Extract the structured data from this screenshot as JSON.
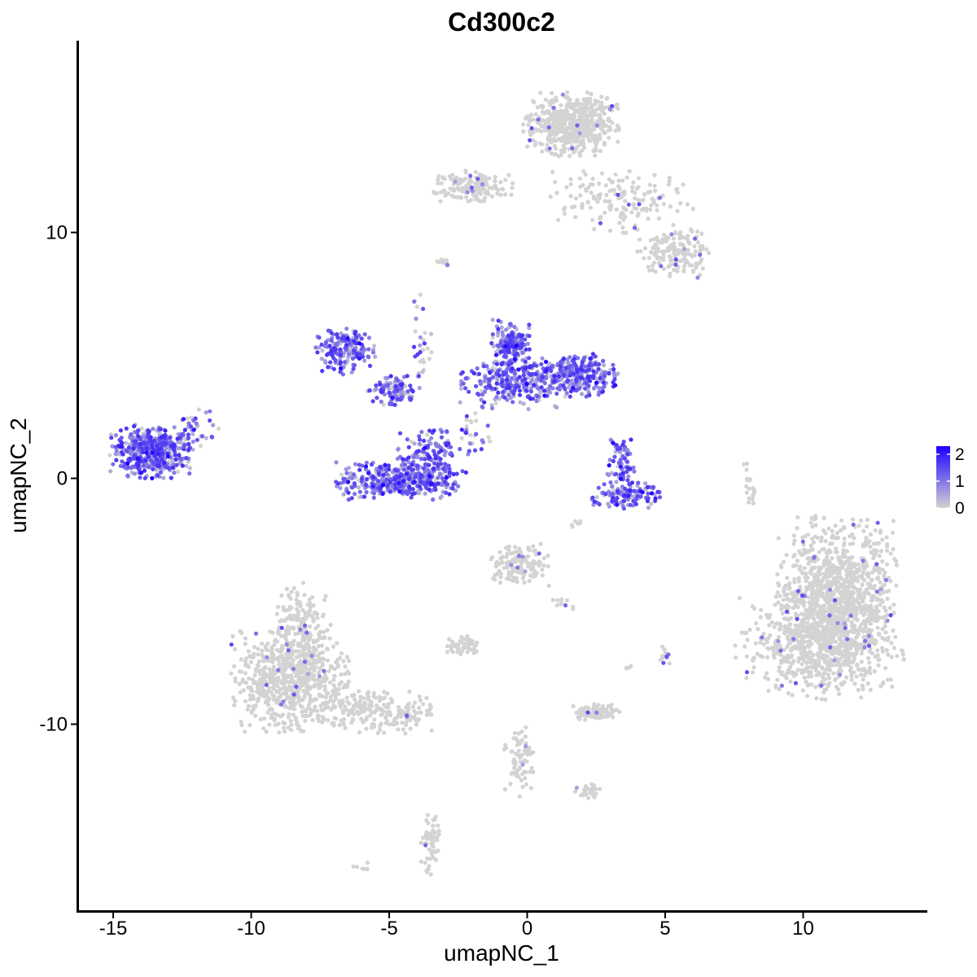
{
  "chart_data": {
    "type": "scatter",
    "title": "Cd300c2",
    "xlabel": "umapNC_1",
    "ylabel": "umapNC_2",
    "xlim": [
      -16.3,
      14.5
    ],
    "ylim": [
      -17.6,
      17.8
    ],
    "x_ticks": [
      -15,
      -10,
      -5,
      0,
      5,
      10
    ],
    "y_ticks": [
      -10,
      0,
      10
    ],
    "x_tick_labels": [
      "-15",
      "-10",
      "-5",
      "0",
      "5",
      "10"
    ],
    "y_tick_labels": [
      "-10",
      "0",
      "10"
    ],
    "grid": false,
    "legend": {
      "position": "right",
      "type": "colorbar",
      "range": [
        0,
        2.3
      ],
      "ticks": [
        0,
        1,
        2
      ],
      "tick_labels": [
        "0",
        "1",
        "2"
      ],
      "low_color": "#d3d3d3",
      "high_color": "#1c00ff"
    },
    "clusters": [
      {
        "x": 11.2,
        "y": -5.0,
        "sx": 1.0,
        "sy": 1.6,
        "n": 1100,
        "expr": 0.02
      },
      {
        "x": 10.6,
        "y": -6.8,
        "sx": 1.4,
        "sy": 1.0,
        "n": 500,
        "expr": 0.02
      },
      {
        "x": -8.6,
        "y": -8.2,
        "sx": 1.0,
        "sy": 1.0,
        "n": 650,
        "expr": 0.02
      },
      {
        "x": -8.2,
        "y": -6.0,
        "sx": 0.5,
        "sy": 0.8,
        "n": 180,
        "expr": 0.02
      },
      {
        "x": -5.6,
        "y": -9.5,
        "sx": 1.1,
        "sy": 0.4,
        "n": 220,
        "expr": 0.02
      },
      {
        "x": 1.6,
        "y": 14.4,
        "sx": 0.8,
        "sy": 0.6,
        "n": 550,
        "expr": 0.02
      },
      {
        "x": 3.4,
        "y": 11.3,
        "sx": 1.2,
        "sy": 0.6,
        "n": 160,
        "expr": 0.03
      },
      {
        "x": 5.3,
        "y": 9.2,
        "sx": 0.6,
        "sy": 0.5,
        "n": 160,
        "expr": 0.03
      },
      {
        "x": -2.0,
        "y": 11.9,
        "sx": 0.7,
        "sy": 0.3,
        "n": 160,
        "expr": 0.03
      },
      {
        "x": -13.6,
        "y": 1.1,
        "sx": 0.7,
        "sy": 0.5,
        "n": 520,
        "expr": 0.55
      },
      {
        "x": -4.6,
        "y": -0.1,
        "sx": 1.1,
        "sy": 0.35,
        "n": 380,
        "expr": 0.6
      },
      {
        "x": -3.6,
        "y": 0.8,
        "sx": 0.5,
        "sy": 0.6,
        "n": 160,
        "expr": 0.65
      },
      {
        "x": -6.6,
        "y": 5.2,
        "sx": 0.5,
        "sy": 0.45,
        "n": 170,
        "expr": 0.6
      },
      {
        "x": -4.8,
        "y": 3.6,
        "sx": 0.45,
        "sy": 0.3,
        "n": 110,
        "expr": 0.55
      },
      {
        "x": -0.6,
        "y": 5.4,
        "sx": 0.35,
        "sy": 0.5,
        "n": 170,
        "expr": 0.6
      },
      {
        "x": -0.5,
        "y": 3.9,
        "sx": 0.9,
        "sy": 0.5,
        "n": 260,
        "expr": 0.6
      },
      {
        "x": 1.8,
        "y": 4.2,
        "sx": 0.7,
        "sy": 0.4,
        "n": 260,
        "expr": 0.75
      },
      {
        "x": 3.4,
        "y": 0.6,
        "sx": 0.25,
        "sy": 0.5,
        "n": 80,
        "expr": 0.7
      },
      {
        "x": 3.6,
        "y": -0.7,
        "sx": 0.6,
        "sy": 0.25,
        "n": 120,
        "expr": 0.65
      },
      {
        "x": -0.3,
        "y": -3.5,
        "sx": 0.5,
        "sy": 0.4,
        "n": 140,
        "expr": 0.03
      },
      {
        "x": 2.5,
        "y": -9.5,
        "sx": 0.4,
        "sy": 0.15,
        "n": 90,
        "expr": 0.03
      },
      {
        "x": -2.3,
        "y": -6.8,
        "sx": 0.3,
        "sy": 0.2,
        "n": 50,
        "expr": 0.04
      },
      {
        "x": -0.3,
        "y": -11.5,
        "sx": 0.25,
        "sy": 0.7,
        "n": 70,
        "expr": 0.02
      },
      {
        "x": 2.1,
        "y": -12.7,
        "sx": 0.3,
        "sy": 0.15,
        "n": 35,
        "expr": 0.04
      },
      {
        "x": -3.5,
        "y": -14.8,
        "sx": 0.18,
        "sy": 0.6,
        "n": 60,
        "expr": 0.02
      },
      {
        "x": 5.0,
        "y": -7.2,
        "sx": 0.1,
        "sy": 0.2,
        "n": 12,
        "expr": 0.08
      },
      {
        "x": 8.1,
        "y": -0.4,
        "sx": 0.12,
        "sy": 0.5,
        "n": 20,
        "expr": 0.01
      },
      {
        "x": -3.8,
        "y": 5.5,
        "sx": 0.15,
        "sy": 0.9,
        "n": 30,
        "expr": 0.2
      },
      {
        "x": -12.0,
        "y": 2.0,
        "sx": 0.4,
        "sy": 0.4,
        "n": 35,
        "expr": 0.4
      },
      {
        "x": -2.0,
        "y": 1.8,
        "sx": 0.3,
        "sy": 0.5,
        "n": 30,
        "expr": 0.3
      },
      {
        "x": 1.8,
        "y": -1.8,
        "sx": 0.1,
        "sy": 0.1,
        "n": 6,
        "expr": 0.05
      },
      {
        "x": -3.0,
        "y": 8.8,
        "sx": 0.15,
        "sy": 0.1,
        "n": 10,
        "expr": 0.01
      },
      {
        "x": 1.3,
        "y": -5.1,
        "sx": 0.2,
        "sy": 0.1,
        "n": 10,
        "expr": 0.01
      },
      {
        "x": 3.6,
        "y": -7.7,
        "sx": 0.1,
        "sy": 0.1,
        "n": 5,
        "expr": 0.01
      },
      {
        "x": -6.0,
        "y": -15.8,
        "sx": 0.15,
        "sy": 0.1,
        "n": 6,
        "expr": 0.01
      }
    ]
  }
}
